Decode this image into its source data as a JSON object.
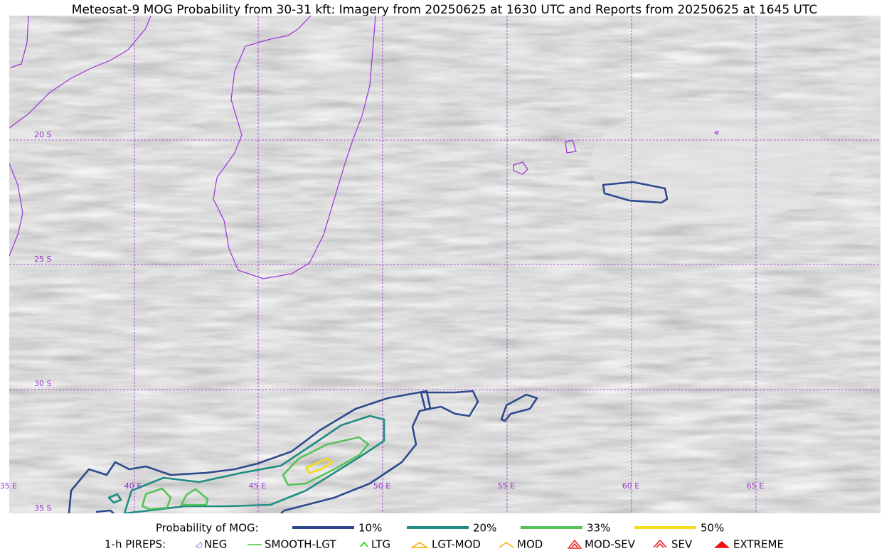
{
  "header": {
    "title": "Meteosat-9 MOG Probability from 30-31 kft: Imagery from 20250625 at 1630 UTC and Reports from 20250625 at 1645 UTC"
  },
  "map": {
    "lat_labels": [
      "20 S",
      "25 S",
      "30 S",
      "35 S"
    ],
    "lon_labels": [
      "35 E",
      "40 E",
      "45 E",
      "50 E",
      "55 E",
      "60 E",
      "65 E"
    ]
  },
  "legend": {
    "probability": {
      "title": "Probability of MOG:",
      "items": [
        {
          "label": "10%",
          "color": "#2d4a8c"
        },
        {
          "label": "20%",
          "color": "#1f8c82"
        },
        {
          "label": "33%",
          "color": "#55c35a"
        },
        {
          "label": "50%",
          "color": "#f2dc1c"
        }
      ]
    },
    "pireps": {
      "title": "1-h PIREPS:",
      "items": [
        {
          "label": "NEG",
          "color": "#b8b8f0"
        },
        {
          "label": "SMOOTH-LGT",
          "color": "#33cc33"
        },
        {
          "label": "LTG",
          "color": "#00dd00"
        },
        {
          "label": "LGT-MOD",
          "color": "#ffaa00"
        },
        {
          "label": "MOD",
          "color": "#ffaa00"
        },
        {
          "label": "MOD-SEV",
          "color": "#ee2222"
        },
        {
          "label": "SEV",
          "color": "#ee2222"
        },
        {
          "label": "EXTREME",
          "color": "#ee1111"
        }
      ]
    }
  }
}
